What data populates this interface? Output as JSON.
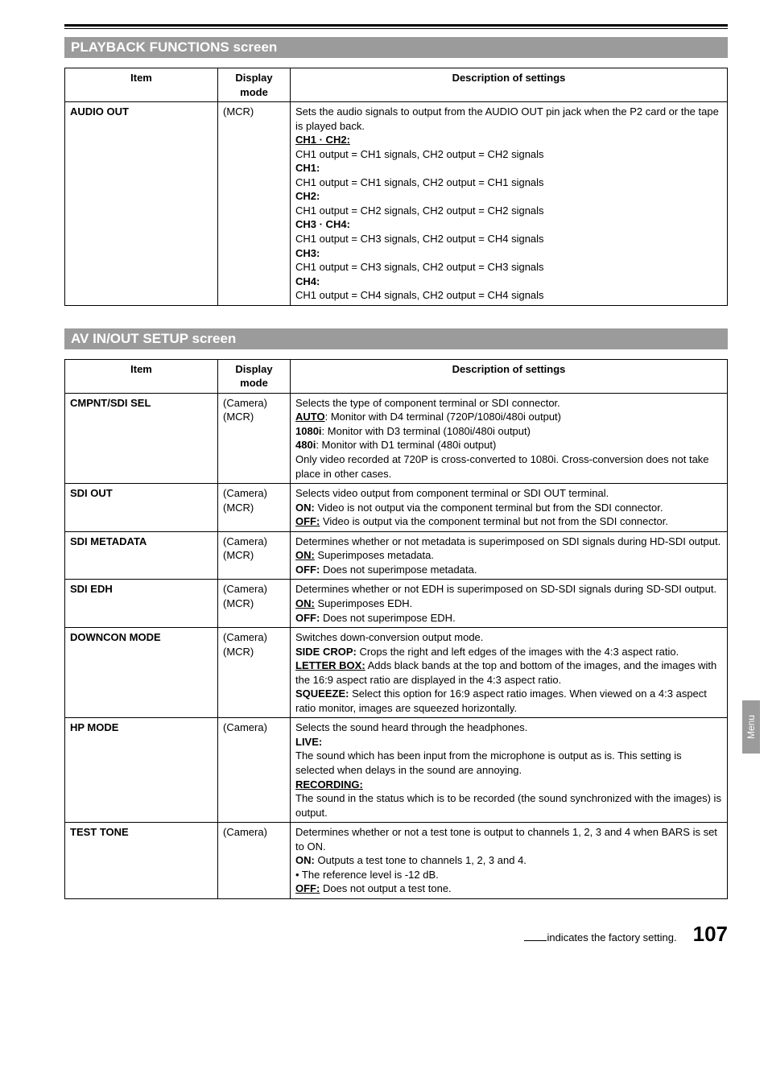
{
  "rules": {
    "top": true
  },
  "sections": [
    {
      "title": "PLAYBACK FUNCTIONS screen",
      "headers": {
        "item": "Item",
        "mode": "Display mode",
        "desc": "Description of settings"
      },
      "rows": [
        {
          "item": "AUDIO OUT",
          "mode": "(MCR)",
          "desc_lines": [
            {
              "t": "Sets the audio signals to output from the AUDIO OUT pin jack when the P2 card or the tape is played back."
            },
            {
              "t": "CH1 · CH2:",
              "b": true,
              "u": true
            },
            {
              "t": "CH1 output = CH1 signals, CH2 output = CH2 signals"
            },
            {
              "t": "CH1:",
              "b": true
            },
            {
              "t": "CH1 output = CH1 signals, CH2 output = CH1 signals"
            },
            {
              "t": "CH2:",
              "b": true
            },
            {
              "t": "CH1 output = CH2 signals, CH2 output = CH2 signals"
            },
            {
              "t": "CH3 · CH4:",
              "b": true
            },
            {
              "t": "CH1 output = CH3 signals, CH2 output = CH4 signals"
            },
            {
              "t": "CH3:",
              "b": true
            },
            {
              "t": "CH1 output = CH3 signals, CH2 output = CH3 signals"
            },
            {
              "t": "CH4:",
              "b": true
            },
            {
              "t": "CH1 output = CH4 signals, CH2 output = CH4 signals"
            }
          ]
        }
      ]
    },
    {
      "title": "AV IN/OUT SETUP screen",
      "headers": {
        "item": "Item",
        "mode": "Display mode",
        "desc": "Description of settings"
      },
      "rows": [
        {
          "item": "CMPNT/SDI SEL",
          "mode": "(Camera)\n(MCR)",
          "desc_lines": [
            {
              "t": "Selects the type of component terminal or SDI connector."
            },
            {
              "spans": [
                {
                  "t": "AUTO",
                  "b": true,
                  "u": true
                },
                {
                  "t": ": Monitor with D4 terminal (720P/1080i/480i output)"
                }
              ]
            },
            {
              "spans": [
                {
                  "t": "1080i",
                  "b": true
                },
                {
                  "t": ": Monitor with D3 terminal (1080i/480i output)"
                }
              ]
            },
            {
              "spans": [
                {
                  "t": "480i",
                  "b": true
                },
                {
                  "t": ": Monitor with D1 terminal (480i output)"
                }
              ]
            },
            {
              "t": "Only video recorded at 720P is cross-converted to 1080i. Cross-conversion does not take place in other cases."
            }
          ]
        },
        {
          "item": "SDI OUT",
          "mode": "(Camera)\n(MCR)",
          "desc_lines": [
            {
              "t": "Selects video output from component terminal or SDI OUT terminal."
            },
            {
              "spans": [
                {
                  "t": "ON:",
                  "b": true
                },
                {
                  "t": " Video is not output via the component terminal but from the SDI connector."
                }
              ]
            },
            {
              "spans": [
                {
                  "t": "OFF:",
                  "b": true,
                  "u": true
                },
                {
                  "t": " Video is output via the component terminal but not from the SDI connector."
                }
              ]
            }
          ]
        },
        {
          "item": "SDI METADATA",
          "mode": "(Camera)\n(MCR)",
          "desc_lines": [
            {
              "t": "Determines whether or not metadata is superimposed on SDI signals during HD-SDI output."
            },
            {
              "spans": [
                {
                  "t": "ON:",
                  "b": true,
                  "u": true
                },
                {
                  "t": " Superimposes metadata."
                }
              ]
            },
            {
              "spans": [
                {
                  "t": "OFF:",
                  "b": true
                },
                {
                  "t": " Does not superimpose metadata."
                }
              ]
            }
          ]
        },
        {
          "item": "SDI EDH",
          "mode": "(Camera)\n(MCR)",
          "desc_lines": [
            {
              "t": "Determines whether or not EDH is superimposed on SD-SDI signals during SD-SDI output."
            },
            {
              "spans": [
                {
                  "t": "ON:",
                  "b": true,
                  "u": true
                },
                {
                  "t": " Superimposes EDH."
                }
              ]
            },
            {
              "spans": [
                {
                  "t": "OFF:",
                  "b": true
                },
                {
                  "t": " Does not superimpose EDH."
                }
              ]
            }
          ]
        },
        {
          "item": "DOWNCON MODE",
          "mode": "(Camera)\n(MCR)",
          "desc_lines": [
            {
              "t": "Switches down-conversion output mode."
            },
            {
              "spans": [
                {
                  "t": "SIDE CROP:",
                  "b": true
                },
                {
                  "t": " Crops the right and left edges of the images with the 4:3 aspect ratio."
                }
              ]
            },
            {
              "spans": [
                {
                  "t": "LETTER BOX:",
                  "b": true,
                  "u": true
                },
                {
                  "t": " Adds black bands at the top and bottom of the images, and the images with the 16:9 aspect ratio are displayed in the 4:3 aspect ratio."
                }
              ]
            },
            {
              "spans": [
                {
                  "t": "SQUEEZE:",
                  "b": true
                },
                {
                  "t": " Select this option for 16:9 aspect ratio images. When viewed on a 4:3 aspect ratio monitor, images are squeezed horizontally."
                }
              ]
            }
          ]
        },
        {
          "item": "HP MODE",
          "mode": "(Camera)",
          "desc_lines": [
            {
              "t": "Selects the sound heard through the headphones."
            },
            {
              "t": "LIVE:",
              "b": true
            },
            {
              "t": "The sound which has been input from the microphone is output as is. This setting is selected when delays in the sound are annoying."
            },
            {
              "t": "RECORDING:",
              "b": true,
              "u": true
            },
            {
              "t": "The sound in the status which is to be recorded (the sound synchronized with the images) is output."
            }
          ]
        },
        {
          "item": "TEST TONE",
          "mode": "(Camera)",
          "desc_lines": [
            {
              "t": "Determines whether or not a test tone is output to channels 1, 2, 3 and 4 when BARS is set to ON."
            },
            {
              "spans": [
                {
                  "t": "ON:",
                  "b": true
                },
                {
                  "t": " Outputs a test tone to channels 1, 2, 3 and 4."
                }
              ]
            },
            {
              "t": "•  The reference level is -12 dB."
            },
            {
              "spans": [
                {
                  "t": "OFF:",
                  "b": true,
                  "u": true
                },
                {
                  "t": " Does not output a test tone."
                }
              ]
            }
          ]
        }
      ]
    }
  ],
  "footer": {
    "note_suffix": "indicates the factory setting.",
    "page": "107"
  },
  "side_tab": "Menu"
}
